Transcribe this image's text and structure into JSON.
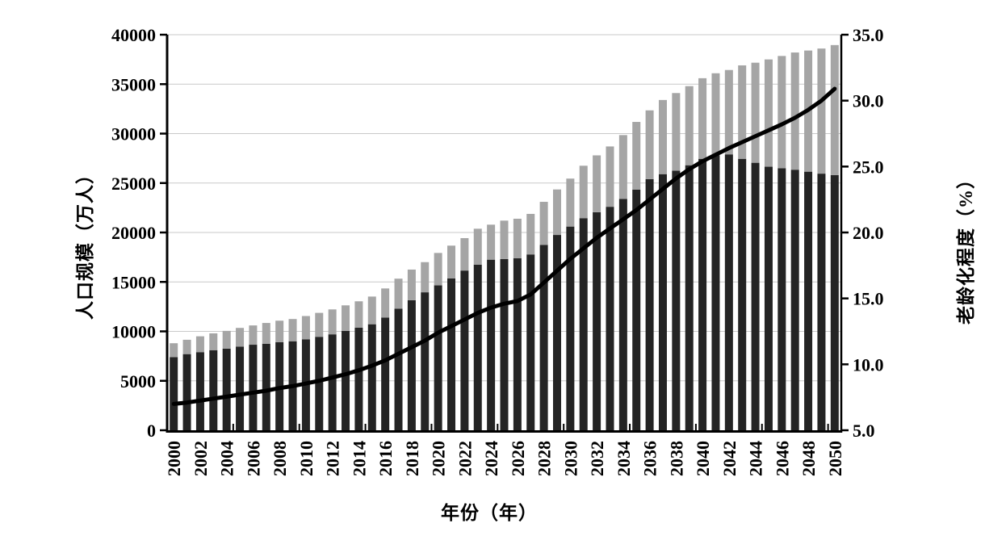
{
  "figure": {
    "background": "#ffffff",
    "bar_color_dark": "#242424",
    "bar_color_gray": "#a5a5a5",
    "line_color": "#000000",
    "grid_color": "#c9c9c9",
    "axis_color": "#000000"
  },
  "chart_data": {
    "type": "bar",
    "stacked": true,
    "grid": true,
    "legend": "none",
    "title": "",
    "xlabel": "年份（年）",
    "years": [
      2000,
      2001,
      2002,
      2003,
      2004,
      2005,
      2006,
      2007,
      2008,
      2009,
      2010,
      2011,
      2012,
      2013,
      2014,
      2015,
      2016,
      2017,
      2018,
      2019,
      2020,
      2021,
      2022,
      2023,
      2024,
      2025,
      2026,
      2027,
      2028,
      2029,
      2030,
      2031,
      2032,
      2033,
      2034,
      2035,
      2036,
      2037,
      2038,
      2039,
      2040,
      2041,
      2042,
      2043,
      2044,
      2045,
      2046,
      2047,
      2048,
      2049,
      2050
    ],
    "series": [
      {
        "name": "stacked-dark-population",
        "role": "bar-lower-segment",
        "color": "#242424",
        "axis": "left",
        "values": [
          7400,
          7700,
          7900,
          8100,
          8250,
          8450,
          8650,
          8750,
          8900,
          9000,
          9200,
          9450,
          9700,
          10050,
          10370,
          10720,
          11400,
          12300,
          13150,
          13950,
          14650,
          15350,
          16150,
          16750,
          17250,
          17320,
          17400,
          17780,
          18750,
          19750,
          20600,
          21450,
          22050,
          22600,
          23400,
          24330,
          25400,
          25900,
          26250,
          26800,
          27450,
          27800,
          27900,
          27450,
          27050,
          26650,
          26500,
          26350,
          26150,
          25950,
          25800
        ]
      },
      {
        "name": "stacked-gray-population",
        "role": "bar-upper-segment",
        "color": "#a5a5a5",
        "axis": "left",
        "values": [
          1400,
          1450,
          1600,
          1700,
          1800,
          1900,
          1950,
          2100,
          2180,
          2250,
          2350,
          2420,
          2520,
          2580,
          2670,
          2800,
          2940,
          3030,
          3100,
          3050,
          3280,
          3320,
          3280,
          3630,
          3540,
          3880,
          3990,
          4100,
          4350,
          4600,
          4850,
          5300,
          5750,
          6100,
          6450,
          6850,
          6950,
          7500,
          7850,
          8000,
          8150,
          8300,
          8530,
          9450,
          10120,
          10850,
          11350,
          11850,
          12250,
          12650,
          13150
        ]
      },
      {
        "name": "aging-degree-line",
        "role": "line",
        "color": "#000000",
        "axis": "right",
        "values": [
          7.0,
          7.1,
          7.25,
          7.4,
          7.55,
          7.7,
          7.85,
          8.0,
          8.2,
          8.35,
          8.55,
          8.75,
          9.0,
          9.25,
          9.55,
          9.9,
          10.3,
          10.8,
          11.3,
          11.8,
          12.4,
          12.9,
          13.4,
          13.9,
          14.3,
          14.6,
          14.8,
          15.3,
          16.2,
          17.1,
          18.0,
          18.8,
          19.6,
          20.3,
          21.0,
          21.7,
          22.5,
          23.3,
          24.1,
          24.8,
          25.4,
          25.9,
          26.4,
          26.85,
          27.3,
          27.75,
          28.2,
          28.7,
          29.3,
          30.0,
          30.9
        ]
      }
    ],
    "left_axis": {
      "label": "人口规模（万人）",
      "min": 0,
      "max": 40000,
      "step": 5000,
      "tick_labels": [
        "0",
        "5000",
        "10000",
        "15000",
        "20000",
        "25000",
        "30000",
        "35000",
        "40000"
      ]
    },
    "right_axis": {
      "label": "老龄化程度（%）",
      "min": 5.0,
      "max": 35.0,
      "step": 5.0,
      "tick_labels": [
        "5.0",
        "10.0",
        "15.0",
        "20.0",
        "25.0",
        "30.0",
        "35.0"
      ]
    },
    "x_axis": {
      "label": "年份（年）",
      "tick_labels": [
        "2000",
        "2002",
        "2004",
        "2006",
        "2008",
        "2010",
        "2012",
        "2014",
        "2016",
        "2018",
        "2020",
        "2022",
        "2024",
        "2026",
        "2028",
        "2030",
        "2032",
        "2034",
        "2036",
        "2038",
        "2040",
        "2042",
        "2044",
        "2046",
        "2048",
        "2050"
      ]
    }
  }
}
